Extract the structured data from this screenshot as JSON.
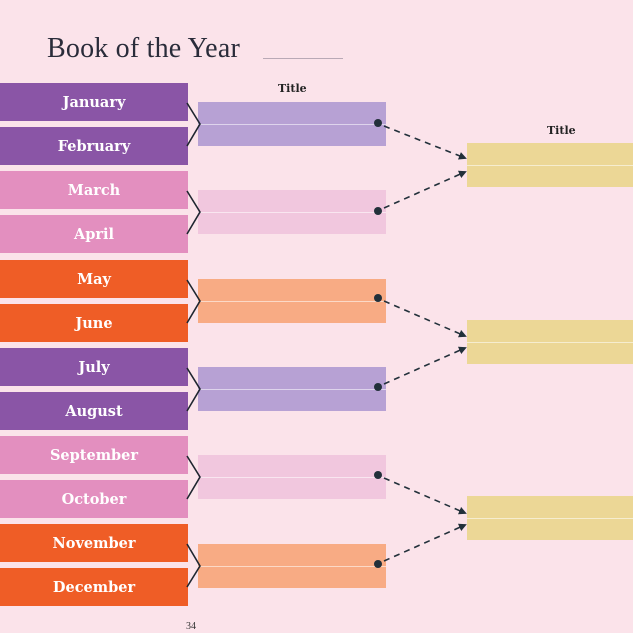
{
  "header": {
    "title": "Book of the Year"
  },
  "labels": {
    "round1_title": "Title",
    "final_title": "Title"
  },
  "months": [
    {
      "label": "January",
      "color": "#8a55a6"
    },
    {
      "label": "February",
      "color": "#8a55a6"
    },
    {
      "label": "March",
      "color": "#e38fbf"
    },
    {
      "label": "April",
      "color": "#e38fbf"
    },
    {
      "label": "May",
      "color": "#ef5d26"
    },
    {
      "label": "June",
      "color": "#ef5d26"
    },
    {
      "label": "July",
      "color": "#8a55a6"
    },
    {
      "label": "August",
      "color": "#8a55a6"
    },
    {
      "label": "September",
      "color": "#e38fbf"
    },
    {
      "label": "October",
      "color": "#e38fbf"
    },
    {
      "label": "November",
      "color": "#ef5d26"
    },
    {
      "label": "December",
      "color": "#ef5d26"
    }
  ],
  "round1_slot_colors": [
    "#b7a1d4",
    "#f1c7de",
    "#f8ab84",
    "#b7a1d4",
    "#f1c7de",
    "#f8ab84"
  ],
  "final_slot_color": "#ecd796",
  "footer": {
    "page_number": "34"
  }
}
